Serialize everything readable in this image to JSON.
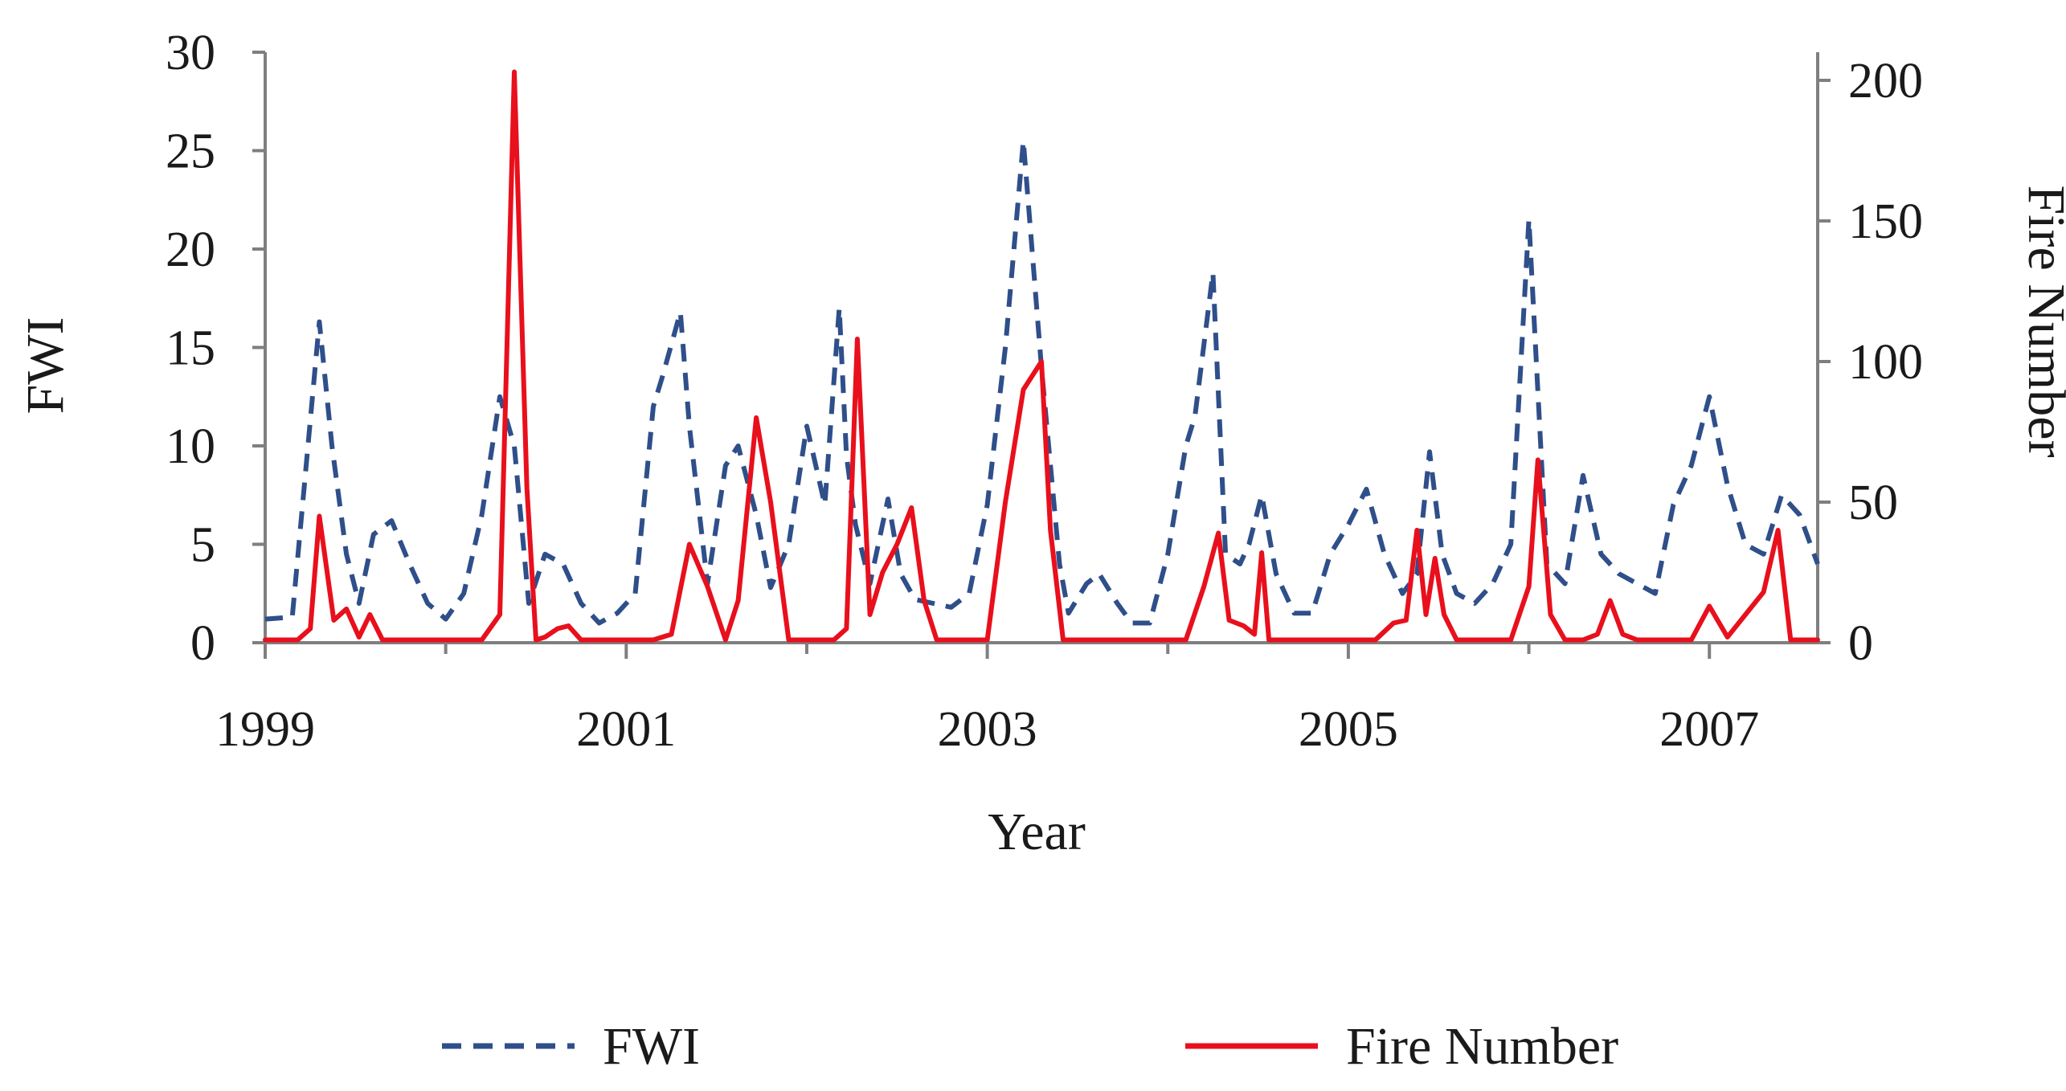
{
  "chart_data": {
    "type": "line",
    "title": "",
    "xlabel": "Year",
    "ylabel_left": "FWI",
    "ylabel_right": "Fire Number",
    "x_ticks": [
      "1999",
      "2001",
      "2003",
      "2005",
      "2007"
    ],
    "y_left_ticks": [
      "0",
      "5",
      "10",
      "15",
      "20",
      "25",
      "30"
    ],
    "y_right_ticks": [
      "0",
      "50",
      "100",
      "150",
      "200"
    ],
    "xlim": [
      1999.0,
      2007.6
    ],
    "ylim_left": [
      0,
      30
    ],
    "ylim_right": [
      0,
      210
    ],
    "grid": false,
    "legend_position": "bottom",
    "series": [
      {
        "name": "FWI",
        "axis": "left",
        "style": "dashed",
        "color": "#2f4f8a",
        "x": [
          1999.0,
          1999.15,
          1999.3,
          1999.37,
          1999.45,
          1999.52,
          1999.6,
          1999.7,
          1999.8,
          1999.9,
          2000.0,
          2000.1,
          2000.2,
          2000.3,
          2000.38,
          2000.46,
          2000.55,
          2000.65,
          2000.75,
          2000.85,
          2000.95,
          2001.05,
          2001.15,
          2001.2,
          2001.3,
          2001.35,
          2001.45,
          2001.55,
          2001.62,
          2001.72,
          2001.8,
          2001.9,
          2002.0,
          2002.1,
          2002.18,
          2002.22,
          2002.27,
          2002.35,
          2002.45,
          2002.52,
          2002.6,
          2002.7,
          2002.8,
          2002.9,
          2003.0,
          2003.1,
          2003.2,
          2003.3,
          2003.4,
          2003.45,
          2003.55,
          2003.62,
          2003.72,
          2003.8,
          2003.9,
          2004.0,
          2004.1,
          2004.15,
          2004.25,
          2004.32,
          2004.4,
          2004.45,
          2004.52,
          2004.6,
          2004.7,
          2004.8,
          2004.9,
          2005.0,
          2005.1,
          2005.2,
          2005.3,
          2005.38,
          2005.45,
          2005.52,
          2005.6,
          2005.7,
          2005.8,
          2005.9,
          2006.0,
          2006.1,
          2006.2,
          2006.3,
          2006.4,
          2006.5,
          2006.6,
          2006.7,
          2006.8,
          2006.9,
          2007.0,
          2007.1,
          2007.2,
          2007.3,
          2007.4,
          2007.5,
          2007.6
        ],
        "y": [
          1.2,
          1.3,
          16.3,
          10.0,
          4.5,
          2.0,
          5.5,
          6.2,
          4.0,
          2.0,
          1.2,
          2.5,
          6.5,
          12.5,
          10.0,
          2.0,
          4.5,
          4.0,
          2.0,
          1.0,
          1.5,
          2.5,
          12.0,
          13.5,
          16.8,
          11.0,
          3.0,
          9.0,
          10.0,
          6.5,
          2.8,
          5.0,
          11.0,
          7.0,
          17.0,
          9.5,
          6.0,
          3.0,
          7.3,
          3.5,
          2.2,
          2.0,
          1.8,
          2.5,
          7.0,
          15.0,
          25.5,
          14.0,
          4.0,
          1.5,
          3.0,
          3.5,
          2.0,
          1.0,
          1.0,
          4.5,
          10.0,
          11.5,
          18.8,
          4.5,
          4.0,
          5.0,
          7.5,
          3.5,
          1.5,
          1.5,
          4.5,
          6.0,
          7.8,
          4.5,
          2.5,
          3.5,
          9.7,
          4.5,
          2.5,
          2.0,
          3.0,
          5.0,
          21.5,
          4.0,
          3.0,
          8.5,
          4.5,
          3.5,
          3.0,
          2.5,
          7.0,
          9.0,
          12.5,
          8.0,
          5.0,
          4.5,
          7.5,
          6.5,
          4.0
        ]
      },
      {
        "name": "Fire Number",
        "axis": "right",
        "style": "solid",
        "color": "#e8101c",
        "x": [
          1999.0,
          1999.1,
          1999.18,
          1999.25,
          1999.3,
          1999.38,
          1999.45,
          1999.52,
          1999.58,
          1999.65,
          1999.72,
          1999.8,
          1999.9,
          2000.0,
          2000.1,
          2000.2,
          2000.3,
          2000.38,
          2000.45,
          2000.5,
          2000.55,
          2000.62,
          2000.68,
          2000.75,
          2000.85,
          2000.95,
          2001.05,
          2001.15,
          2001.25,
          2001.35,
          2001.45,
          2001.55,
          2001.62,
          2001.72,
          2001.8,
          2001.9,
          2002.0,
          2002.08,
          2002.15,
          2002.22,
          2002.28,
          2002.35,
          2002.42,
          2002.5,
          2002.58,
          2002.65,
          2002.72,
          2002.8,
          2002.9,
          2003.0,
          2003.1,
          2003.2,
          2003.3,
          2003.35,
          2003.42,
          2003.5,
          2003.6,
          2003.7,
          2003.8,
          2003.9,
          2004.0,
          2004.1,
          2004.2,
          2004.28,
          2004.34,
          2004.42,
          2004.48,
          2004.52,
          2004.56,
          2004.65,
          2004.75,
          2004.85,
          2004.95,
          2005.05,
          2005.15,
          2005.25,
          2005.32,
          2005.38,
          2005.43,
          2005.48,
          2005.53,
          2005.6,
          2005.7,
          2005.8,
          2005.9,
          2006.0,
          2006.05,
          2006.12,
          2006.2,
          2006.3,
          2006.38,
          2006.45,
          2006.52,
          2006.6,
          2006.7,
          2006.8,
          2006.9,
          2007.0,
          2007.1,
          2007.2,
          2007.3,
          2007.38,
          2007.45,
          2007.52,
          2007.6
        ],
        "y": [
          1,
          1,
          1,
          5,
          45,
          8,
          12,
          2,
          10,
          1,
          1,
          1,
          1,
          1,
          1,
          1,
          10,
          203,
          55,
          1,
          2,
          5,
          6,
          1,
          1,
          1,
          1,
          1,
          3,
          35,
          20,
          1,
          15,
          80,
          50,
          1,
          1,
          1,
          1,
          5,
          108,
          10,
          25,
          35,
          48,
          15,
          1,
          1,
          1,
          1,
          50,
          90,
          100,
          40,
          1,
          1,
          1,
          1,
          1,
          1,
          1,
          1,
          20,
          39,
          8,
          6,
          3,
          32,
          1,
          1,
          1,
          1,
          1,
          1,
          1,
          7,
          8,
          40,
          10,
          30,
          10,
          1,
          1,
          1,
          1,
          20,
          65,
          10,
          1,
          1,
          3,
          15,
          3,
          1,
          1,
          1,
          1,
          13,
          2,
          10,
          18,
          40,
          1,
          1,
          1
        ]
      }
    ]
  }
}
